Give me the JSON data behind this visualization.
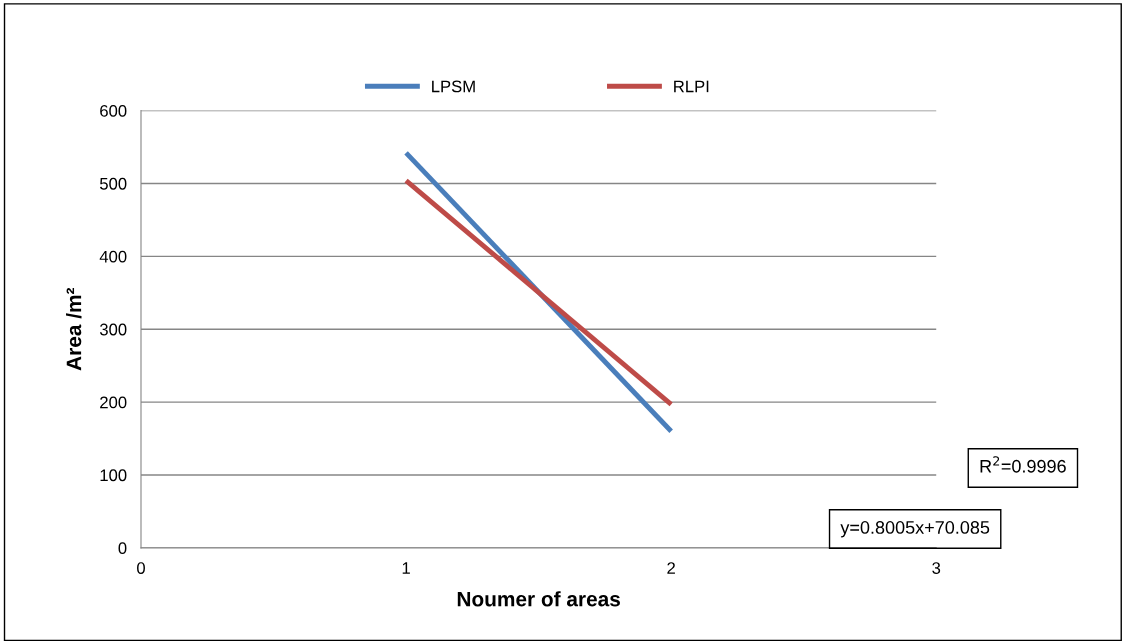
{
  "chart_data": {
    "type": "line",
    "xlabel": "Noumer of areas",
    "ylabel": "Area /m²",
    "series": [
      {
        "name": "LPSM",
        "color": "#4a7ebb",
        "values": [
          542,
          160
        ]
      },
      {
        "name": "RLPI",
        "color": "#be4b48",
        "values": [
          504,
          197
        ]
      }
    ],
    "x": [
      1,
      2
    ],
    "xlim": [
      0,
      3
    ],
    "xticks": [
      0,
      1,
      2,
      3
    ],
    "ylim": [
      0,
      600
    ],
    "yticks": [
      0,
      100,
      200,
      300,
      400,
      500,
      600
    ],
    "grid": "y",
    "legend": "top",
    "marker": "none",
    "line_style": "solid",
    "annotations": [
      "R$^{2}$=0.9996",
      "y=0.8005x+70.085"
    ]
  }
}
